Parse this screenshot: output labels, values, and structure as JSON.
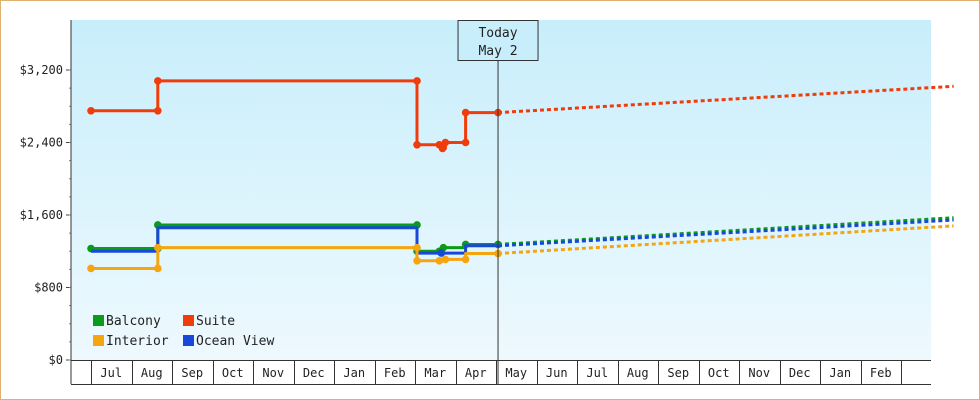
{
  "chart_data": {
    "type": "line",
    "y_ticks": [
      "$0",
      "$800",
      "$1,600",
      "$2,400",
      "$3,200"
    ],
    "ylim": [
      0,
      3200
    ],
    "months": [
      "Jul",
      "Aug",
      "Sep",
      "Oct",
      "Nov",
      "Dec",
      "Jan",
      "Feb",
      "Mar",
      "Apr",
      "May",
      "Jun",
      "Jul",
      "Aug",
      "Sep",
      "Oct",
      "Nov",
      "Dec",
      "Jan",
      "Feb"
    ],
    "today": {
      "line1": "Today",
      "line2": "May 2",
      "x": 10.05
    },
    "legend": [
      {
        "key": "balcony",
        "label": "Balcony"
      },
      {
        "key": "suite",
        "label": "Suite"
      },
      {
        "key": "interior",
        "label": "Interior"
      },
      {
        "key": "oceanview",
        "label": "Ocean View"
      }
    ],
    "series": [
      {
        "key": "suite",
        "name": "Suite",
        "color": "#f03c0a",
        "points": [
          [
            0,
            2750
          ],
          [
            1.65,
            2750
          ],
          [
            1.65,
            3080
          ],
          [
            8.05,
            3080
          ],
          [
            8.05,
            2375
          ],
          [
            8.65,
            2375
          ],
          [
            8.65,
            2335
          ],
          [
            8.75,
            2335
          ],
          [
            8.75,
            2400
          ],
          [
            9.25,
            2400
          ],
          [
            9.25,
            2730
          ],
          [
            10.05,
            2730
          ]
        ],
        "markers": [
          [
            0,
            2750
          ],
          [
            1.65,
            2750
          ],
          [
            1.65,
            3080
          ],
          [
            8.05,
            3080
          ],
          [
            8.05,
            2375
          ],
          [
            8.6,
            2375
          ],
          [
            8.68,
            2335
          ],
          [
            8.75,
            2400
          ],
          [
            9.25,
            2400
          ],
          [
            9.25,
            2730
          ],
          [
            10.05,
            2730
          ]
        ],
        "forecast": [
          [
            10.05,
            2730
          ],
          [
            21.3,
            3020
          ]
        ]
      },
      {
        "key": "balcony",
        "name": "Balcony",
        "color": "#0c9a1a",
        "points": [
          [
            0,
            1230
          ],
          [
            1.65,
            1230
          ],
          [
            1.65,
            1490
          ],
          [
            8.05,
            1490
          ],
          [
            8.05,
            1200
          ],
          [
            8.65,
            1200
          ],
          [
            8.65,
            1240
          ],
          [
            9.25,
            1240
          ],
          [
            9.25,
            1275
          ],
          [
            10.05,
            1275
          ]
        ],
        "markers": [
          [
            0,
            1230
          ],
          [
            1.65,
            1230
          ],
          [
            1.65,
            1490
          ],
          [
            8.05,
            1490
          ],
          [
            8.05,
            1200
          ],
          [
            8.6,
            1200
          ],
          [
            8.7,
            1240
          ],
          [
            9.25,
            1275
          ],
          [
            10.05,
            1275
          ]
        ],
        "forecast": [
          [
            10.05,
            1275
          ],
          [
            21.3,
            1570
          ]
        ]
      },
      {
        "key": "oceanview",
        "name": "Ocean View",
        "color": "#1848d8",
        "points": [
          [
            0,
            1200
          ],
          [
            1.65,
            1200
          ],
          [
            1.65,
            1460
          ],
          [
            8.05,
            1460
          ],
          [
            8.05,
            1180
          ],
          [
            9.25,
            1180
          ],
          [
            9.25,
            1260
          ],
          [
            10.05,
            1260
          ]
        ],
        "markers": [
          [
            8.65,
            1180
          ]
        ],
        "forecast": [
          [
            10.05,
            1260
          ],
          [
            21.3,
            1545
          ]
        ]
      },
      {
        "key": "interior",
        "name": "Interior",
        "color": "#f5a50f",
        "points": [
          [
            0,
            1010
          ],
          [
            1.65,
            1010
          ],
          [
            1.65,
            1240
          ],
          [
            8.05,
            1240
          ],
          [
            8.05,
            1095
          ],
          [
            8.65,
            1095
          ],
          [
            8.65,
            1110
          ],
          [
            9.25,
            1110
          ],
          [
            9.25,
            1175
          ],
          [
            10.05,
            1175
          ]
        ],
        "markers": [
          [
            0,
            1010
          ],
          [
            1.65,
            1010
          ],
          [
            1.65,
            1240
          ],
          [
            8.05,
            1240
          ],
          [
            8.05,
            1095
          ],
          [
            8.6,
            1095
          ],
          [
            8.75,
            1110
          ],
          [
            9.25,
            1110
          ],
          [
            10.05,
            1175
          ]
        ],
        "forecast": [
          [
            10.05,
            1175
          ],
          [
            21.3,
            1480
          ]
        ]
      }
    ]
  }
}
